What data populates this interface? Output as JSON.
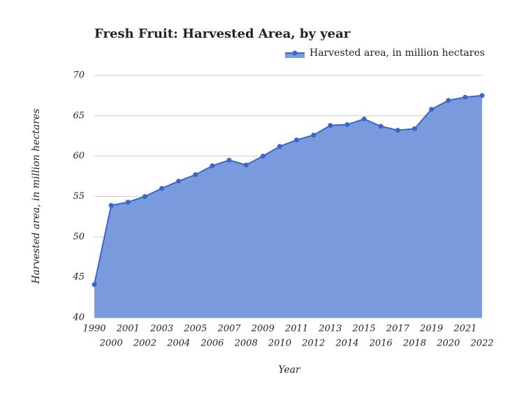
{
  "chart_data": {
    "type": "area",
    "title": "Fresh Fruit: Harvested Area, by year",
    "x_label": "Year",
    "y_label": "Harvested area, in million hectares",
    "categories": [
      "1990",
      "2000",
      "2001",
      "2002",
      "2003",
      "2004",
      "2005",
      "2006",
      "2007",
      "2008",
      "2009",
      "2010",
      "2011",
      "2012",
      "2013",
      "2014",
      "2015",
      "2016",
      "2017",
      "2018",
      "2019",
      "2020",
      "2021",
      "2022"
    ],
    "series": [
      {
        "name": "Harvested area, in million hectares",
        "color": "#3a66c9",
        "fill": "#7a9ade",
        "values": [
          44.1,
          53.9,
          54.3,
          55.0,
          56.0,
          56.9,
          57.7,
          58.8,
          59.5,
          58.9,
          60.0,
          61.2,
          62.0,
          62.6,
          63.8,
          63.9,
          64.6,
          63.7,
          63.2,
          63.4,
          65.8,
          66.9,
          67.3,
          67.5
        ]
      }
    ],
    "ylim": [
      40,
      70
    ],
    "yticks": [
      40,
      45,
      50,
      55,
      60,
      65,
      70
    ],
    "grid": true,
    "legend": "top-right"
  }
}
